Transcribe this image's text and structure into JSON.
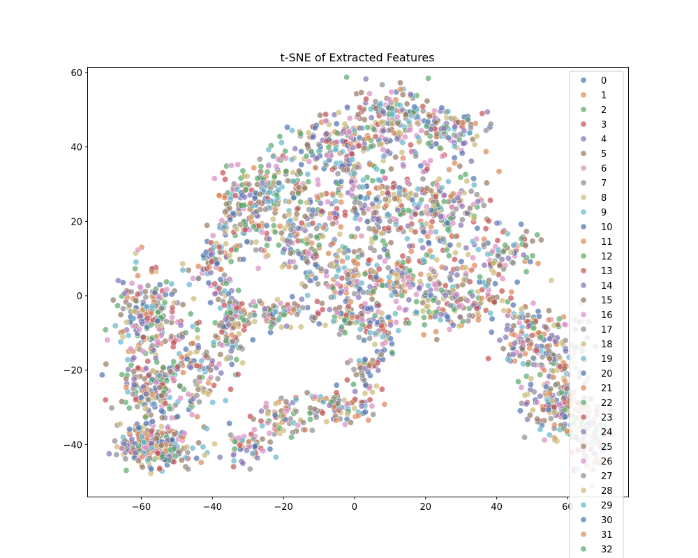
{
  "chart_data": {
    "type": "scatter",
    "title": "t-SNE of Extracted Features",
    "xlabel": "",
    "ylabel": "",
    "xlim": [
      -75,
      77
    ],
    "ylim": [
      -54,
      61.5
    ],
    "x_ticks": [
      -60,
      -40,
      -20,
      0,
      20,
      40,
      60
    ],
    "y_ticks": [
      -40,
      -20,
      0,
      20,
      40,
      60
    ],
    "grid": false,
    "legend_placement": "right",
    "legend_labels": [
      "0",
      "1",
      "2",
      "3",
      "4",
      "5",
      "6",
      "7",
      "8",
      "9",
      "10",
      "11",
      "12",
      "13",
      "14",
      "15",
      "16",
      "17",
      "18",
      "19",
      "20",
      "21",
      "22",
      "23",
      "24",
      "25",
      "26",
      "27",
      "28",
      "29",
      "30",
      "31",
      "32"
    ],
    "palette": [
      "#4c72b0",
      "#dd8452",
      "#55a868",
      "#c44e52",
      "#8172b3",
      "#937860",
      "#da8bc3",
      "#8c8c8c",
      "#ccb974",
      "#64b5cd"
    ],
    "marker_opacity": 0.7,
    "n_points_approx": 2600,
    "clusters": [
      {
        "cx": -56,
        "cy": -40,
        "sx": 7,
        "sy": 4,
        "n": 230
      },
      {
        "cx": -57,
        "cy": -25,
        "sx": 6,
        "sy": 6,
        "n": 160
      },
      {
        "cx": -58,
        "cy": -5,
        "sx": 6,
        "sy": 8,
        "n": 200
      },
      {
        "cx": -45,
        "cy": -20,
        "sx": 5,
        "sy": 8,
        "n": 90
      },
      {
        "cx": -35,
        "cy": -8,
        "sx": 3,
        "sy": 10,
        "n": 90
      },
      {
        "cx": -40,
        "cy": 8,
        "sx": 4,
        "sy": 5,
        "n": 60
      },
      {
        "cx": -32,
        "cy": 22,
        "sx": 6,
        "sy": 8,
        "n": 130
      },
      {
        "cx": -22,
        "cy": 30,
        "sx": 7,
        "sy": 6,
        "n": 100
      },
      {
        "cx": -15,
        "cy": 15,
        "sx": 8,
        "sy": 8,
        "n": 130
      },
      {
        "cx": -22,
        "cy": -5,
        "sx": 10,
        "sy": 3,
        "n": 100
      },
      {
        "cx": -5,
        "cy": 40,
        "sx": 10,
        "sy": 6,
        "n": 170
      },
      {
        "cx": 10,
        "cy": 48,
        "sx": 8,
        "sy": 5,
        "n": 130
      },
      {
        "cx": 25,
        "cy": 45,
        "sx": 9,
        "sy": 5,
        "n": 120
      },
      {
        "cx": 5,
        "cy": 25,
        "sx": 12,
        "sy": 8,
        "n": 200
      },
      {
        "cx": 25,
        "cy": 22,
        "sx": 10,
        "sy": 8,
        "n": 170
      },
      {
        "cx": 0,
        "cy": 5,
        "sx": 8,
        "sy": 6,
        "n": 120
      },
      {
        "cx": 15,
        "cy": 5,
        "sx": 8,
        "sy": 6,
        "n": 100
      },
      {
        "cx": 28,
        "cy": -2,
        "sx": 10,
        "sy": 5,
        "n": 140
      },
      {
        "cx": 42,
        "cy": 10,
        "sx": 7,
        "sy": 7,
        "n": 90
      },
      {
        "cx": 0,
        "cy": -6,
        "sx": 6,
        "sy": 3,
        "n": 70
      },
      {
        "cx": 48,
        "cy": -12,
        "sx": 5,
        "sy": 8,
        "n": 110
      },
      {
        "cx": 58,
        "cy": -15,
        "sx": 5,
        "sy": 8,
        "n": 90
      },
      {
        "cx": 58,
        "cy": -30,
        "sx": 6,
        "sy": 6,
        "n": 150
      },
      {
        "cx": 66,
        "cy": -38,
        "sx": 4,
        "sy": 6,
        "n": 80
      },
      {
        "cx": -30,
        "cy": -40,
        "sx": 4,
        "sy": 3,
        "n": 50
      },
      {
        "cx": -20,
        "cy": -33,
        "sx": 5,
        "sy": 3,
        "n": 60
      },
      {
        "cx": -5,
        "cy": -30,
        "sx": 7,
        "sy": 3,
        "n": 80
      },
      {
        "cx": 3,
        "cy": -20,
        "sx": 3,
        "sy": 4,
        "n": 40
      },
      {
        "cx": 8,
        "cy": -12,
        "sx": 3,
        "sy": 4,
        "n": 30
      }
    ]
  }
}
